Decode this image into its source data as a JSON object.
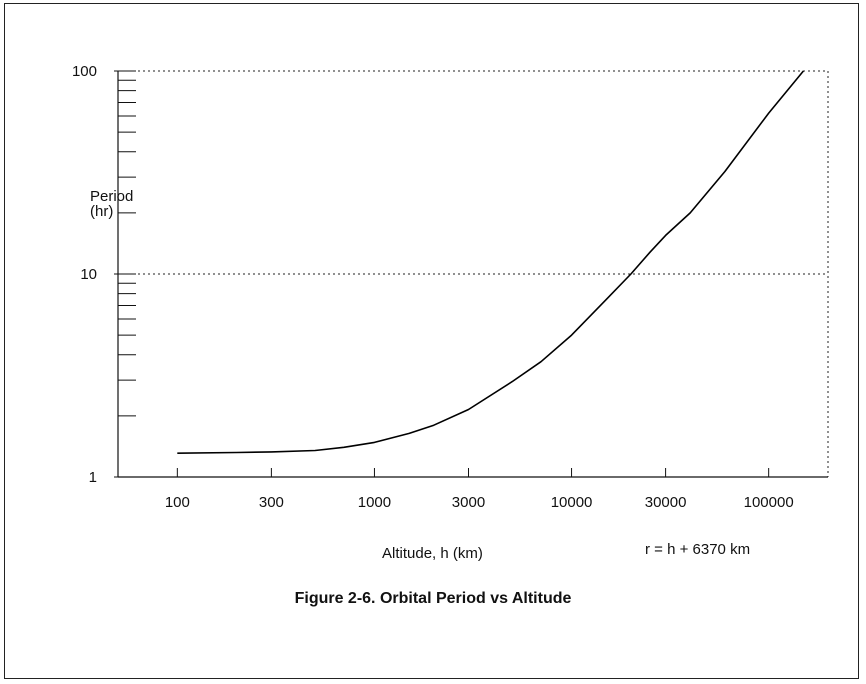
{
  "chart_data": {
    "type": "line",
    "title": "Figure 2-6.  Orbital Period vs Altitude",
    "xlabel": "Altitude, h (km)",
    "ylabel": [
      "Period",
      "(hr)"
    ],
    "x_scale": "log",
    "y_scale": "log",
    "xlim": [
      50,
      200000
    ],
    "ylim": [
      1,
      100
    ],
    "x_ticks": [
      100,
      300,
      1000,
      3000,
      10000,
      30000,
      100000
    ],
    "x_tick_labels": [
      "100",
      "300",
      "1000",
      "3000",
      "10000",
      "30000",
      "100000"
    ],
    "y_ticks": [
      1,
      10,
      100
    ],
    "y_tick_labels": [
      "1",
      "10",
      "100"
    ],
    "grid": "dotted at y=10 and y=100, right border dotted",
    "annotation": "r = h + 6370 km",
    "series": [
      {
        "x": [
          100,
          200,
          300,
          500,
          700,
          1000,
          1500,
          2000,
          3000,
          5000,
          7000,
          10000,
          15000,
          20000,
          25000,
          30000,
          40000,
          60000,
          100000,
          150000
        ],
        "y": [
          1.31,
          1.32,
          1.33,
          1.35,
          1.4,
          1.48,
          1.64,
          1.8,
          2.15,
          2.95,
          3.7,
          5.0,
          7.5,
          10.0,
          12.8,
          15.5,
          20.0,
          32.0,
          62.0,
          100.0
        ]
      }
    ]
  }
}
